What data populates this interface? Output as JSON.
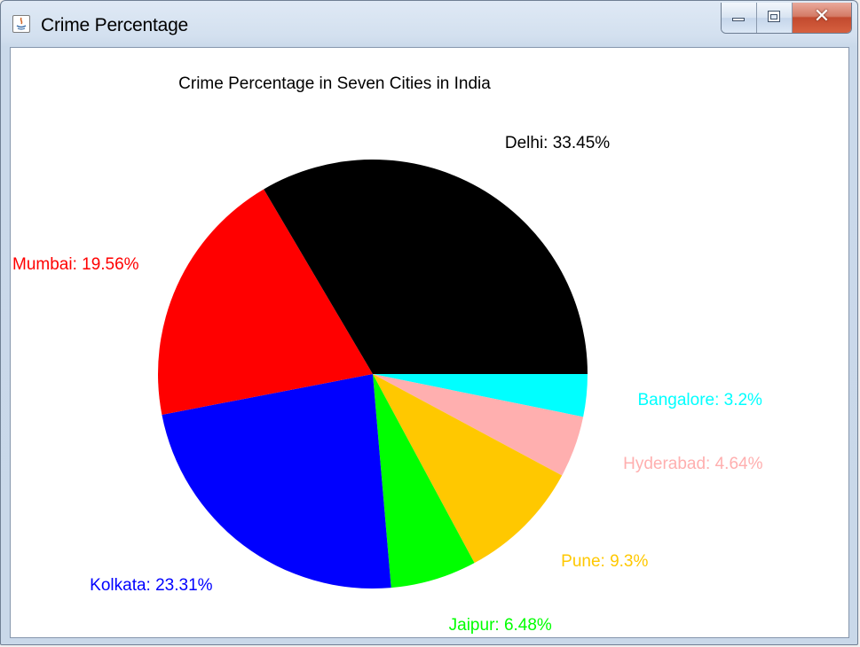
{
  "window": {
    "title": "Crime Percentage",
    "icon": "java-app-icon",
    "controls": {
      "minimize": "minimize-icon",
      "maximize": "maximize-icon",
      "close": "close-icon"
    }
  },
  "chart_data": {
    "type": "pie",
    "title": "Crime Percentage in Seven Cities in India",
    "slices": [
      {
        "name": "Bangalore",
        "value": 3.2,
        "label": "Bangalore: 3.2%",
        "color": "#00ffff"
      },
      {
        "name": "Hyderabad",
        "value": 4.64,
        "label": "Hyderabad: 4.64%",
        "color": "#ffafaf"
      },
      {
        "name": "Pune",
        "value": 9.3,
        "label": "Pune: 9.3%",
        "color": "#ffc800"
      },
      {
        "name": "Jaipur",
        "value": 6.48,
        "label": "Jaipur: 6.48%",
        "color": "#00ff00"
      },
      {
        "name": "Kolkata",
        "value": 23.31,
        "label": "Kolkata: 23.31%",
        "color": "#0000ff"
      },
      {
        "name": "Mumbai",
        "value": 19.56,
        "label": "Mumbai: 19.56%",
        "color": "#ff0000"
      },
      {
        "name": "Delhi",
        "value": 33.45,
        "label": "Delhi: 33.45%",
        "color": "#000000"
      }
    ]
  }
}
